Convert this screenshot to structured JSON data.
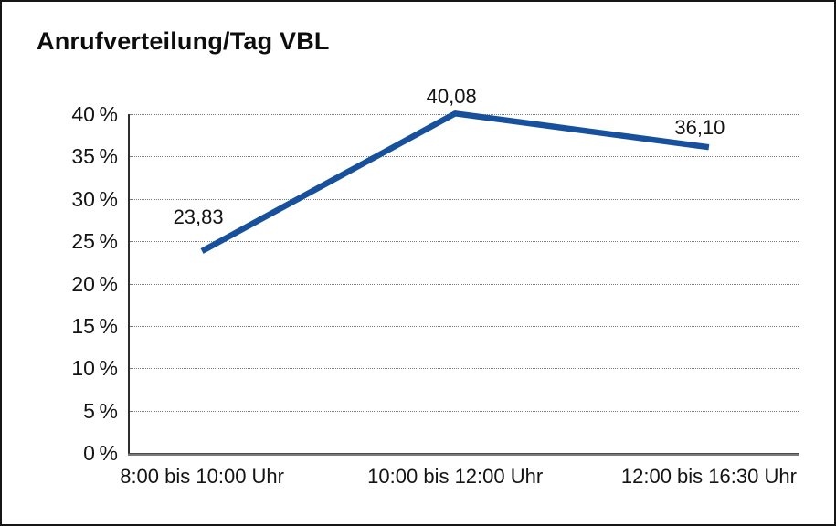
{
  "title": "Anrufverteilung/Tag VBL",
  "chart_data": {
    "type": "line",
    "title": "Anrufverteilung/Tag VBL",
    "categories": [
      "8:00 bis 10:00 Uhr",
      "10:00 bis 12:00 Uhr",
      "12:00 bis 16:30 Uhr"
    ],
    "values": [
      23.83,
      40.08,
      36.1
    ],
    "point_labels": [
      "23,83",
      "40,08",
      "36,10"
    ],
    "y_ticks": [
      0,
      5,
      10,
      15,
      20,
      25,
      30,
      35,
      40
    ],
    "y_tick_labels": [
      "0 %",
      "5 %",
      "10 %",
      "15 %",
      "20 %",
      "25 %",
      "30 %",
      "35 %",
      "40 %"
    ],
    "ylim": [
      0,
      40
    ],
    "xlabel": "",
    "ylabel": "",
    "legend": false,
    "grid": "horizontal-dotted",
    "line_color": "#17519E"
  },
  "colors": {
    "line": "#17519E",
    "gridline": "#7c7c7c",
    "axis": "#4a4a4a",
    "border": "#161616",
    "background": "#ffffff",
    "text": "#141414"
  }
}
